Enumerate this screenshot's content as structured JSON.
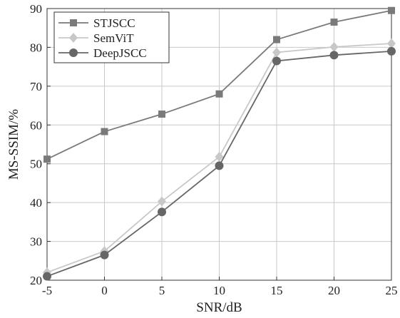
{
  "chart_data": {
    "type": "line",
    "x": [
      -5,
      0,
      5,
      10,
      15,
      20,
      25
    ],
    "xticks": [
      "-5",
      "0",
      "5",
      "10",
      "15",
      "20",
      "25"
    ],
    "yticks": [
      "20",
      "30",
      "40",
      "50",
      "60",
      "70",
      "80",
      "90"
    ],
    "xlabel": "SNR/dB",
    "ylabel": "MS-SSIM/%",
    "xlim": [
      -5,
      25
    ],
    "ylim": [
      20,
      90
    ],
    "grid": true,
    "legend_position": "top-left",
    "series": [
      {
        "name": "STJSCC",
        "values": [
          51.2,
          58.3,
          62.8,
          68.0,
          82.0,
          86.5,
          89.5
        ],
        "color": "#7a7a7a",
        "marker": "square"
      },
      {
        "name": "SemViT",
        "values": [
          22.0,
          27.5,
          40.3,
          51.8,
          78.7,
          80.1,
          81.0
        ],
        "color": "#c8c8c8",
        "marker": "diamond"
      },
      {
        "name": "DeepJSCC",
        "values": [
          21.0,
          26.5,
          37.6,
          49.5,
          76.5,
          78.0,
          79.0
        ],
        "color": "#666666",
        "marker": "circle"
      }
    ]
  }
}
